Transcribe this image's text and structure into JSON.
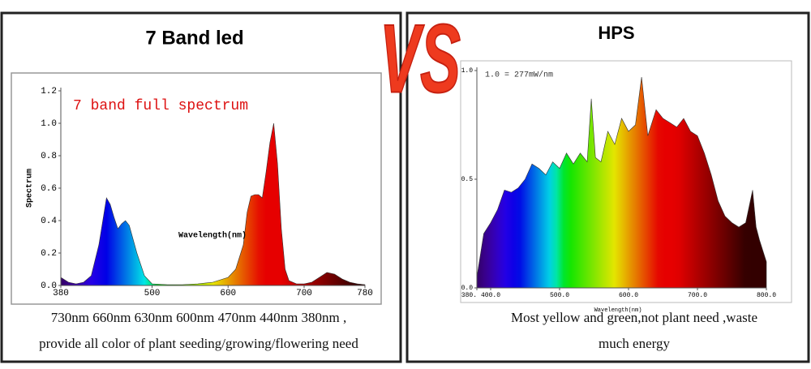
{
  "headline": "VS",
  "chart_data": [
    {
      "type": "area",
      "title": "7 Band led",
      "annotation": "7 band full spectrum",
      "xlabel": "Wavelength(nm)",
      "ylabel": "Spectrum",
      "caption": [
        "730nm 660nm 630nm 600nm 470nm 440nm 380nm ,",
        "provide all color of plant seeding/growing/flowering need"
      ],
      "xlim": [
        380,
        780
      ],
      "xticks": [
        380,
        500,
        600,
        700,
        780
      ],
      "ylim": [
        0,
        1.2
      ],
      "yticks": [
        {
          "value": 0,
          "label": "0.0"
        },
        0.2,
        0.4,
        0.6,
        0.8,
        {
          "value": 1,
          "label": "1.0"
        },
        1.2
      ],
      "x": [
        380,
        390,
        400,
        410,
        420,
        430,
        440,
        445,
        450,
        455,
        460,
        465,
        470,
        480,
        490,
        500,
        520,
        540,
        560,
        580,
        600,
        610,
        620,
        625,
        630,
        635,
        640,
        645,
        650,
        655,
        660,
        665,
        670,
        675,
        680,
        690,
        700,
        710,
        720,
        730,
        740,
        750,
        760,
        770,
        780
      ],
      "series": [
        {
          "name": "7 band full spectrum",
          "values": [
            0.05,
            0.02,
            0.01,
            0.02,
            0.06,
            0.25,
            0.54,
            0.5,
            0.42,
            0.35,
            0.38,
            0.4,
            0.37,
            0.2,
            0.06,
            0.01,
            0.005,
            0.005,
            0.01,
            0.02,
            0.05,
            0.1,
            0.25,
            0.45,
            0.55,
            0.56,
            0.56,
            0.54,
            0.7,
            0.88,
            1.0,
            0.75,
            0.35,
            0.1,
            0.03,
            0.01,
            0.01,
            0.02,
            0.05,
            0.08,
            0.07,
            0.04,
            0.02,
            0.01,
            0.005
          ]
        }
      ]
    },
    {
      "type": "area",
      "title": "HPS",
      "annotation": "1.0 = 277mW/nm",
      "xlabel": "Wavelength(nm)",
      "caption": [
        "Most yellow and green,not plant need ,waste",
        "much energy"
      ],
      "xlim": [
        380,
        800
      ],
      "xticks": [
        {
          "value": 380,
          "label": "380."
        },
        {
          "value": 400,
          "label": "400.0"
        },
        {
          "value": 500,
          "label": "500.0"
        },
        {
          "value": 600,
          "label": "600.0"
        },
        {
          "value": 700,
          "label": "700.0"
        },
        {
          "value": 800,
          "label": "800.0"
        }
      ],
      "ylim": [
        0,
        1
      ],
      "yticks": [
        {
          "value": 0,
          "label": "0.0"
        },
        0.5,
        {
          "value": 1,
          "label": "1.0"
        }
      ],
      "x": [
        380,
        390,
        400,
        410,
        420,
        430,
        440,
        450,
        460,
        470,
        480,
        490,
        500,
        510,
        520,
        530,
        540,
        546,
        552,
        560,
        570,
        580,
        590,
        600,
        610,
        619,
        628,
        640,
        650,
        660,
        670,
        680,
        690,
        700,
        710,
        720,
        730,
        740,
        750,
        760,
        770,
        780,
        785,
        790,
        800
      ],
      "series": [
        {
          "name": "HPS",
          "values": [
            0.05,
            0.25,
            0.3,
            0.36,
            0.45,
            0.44,
            0.46,
            0.5,
            0.57,
            0.55,
            0.52,
            0.58,
            0.55,
            0.62,
            0.57,
            0.62,
            0.58,
            0.87,
            0.6,
            0.58,
            0.72,
            0.66,
            0.78,
            0.72,
            0.75,
            0.97,
            0.7,
            0.82,
            0.78,
            0.76,
            0.74,
            0.78,
            0.72,
            0.7,
            0.62,
            0.52,
            0.4,
            0.33,
            0.3,
            0.28,
            0.3,
            0.45,
            0.28,
            0.22,
            0.12
          ]
        }
      ]
    }
  ]
}
